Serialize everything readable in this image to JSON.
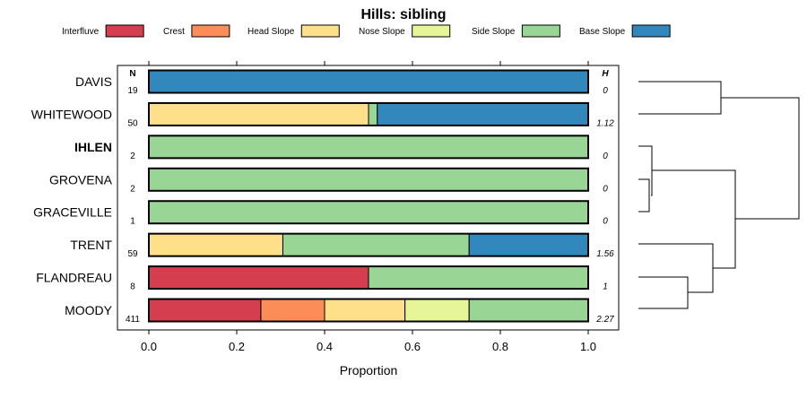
{
  "chart_data": {
    "type": "bar",
    "orientation": "horizontal",
    "stacked": true,
    "title": "Hills: sibling",
    "xlabel": "Proportion",
    "ylabel": "",
    "xlim": [
      0,
      1
    ],
    "x_ticks": [
      "0.0",
      "0.2",
      "0.4",
      "0.6",
      "0.8",
      "1.0"
    ],
    "n_header": "N",
    "h_header": "H",
    "legend": [
      {
        "name": "Interfluve",
        "color": "#D53E4F"
      },
      {
        "name": "Crest",
        "color": "#FC8D59"
      },
      {
        "name": "Head Slope",
        "color": "#FEE08B"
      },
      {
        "name": "Nose Slope",
        "color": "#E6F598"
      },
      {
        "name": "Side Slope",
        "color": "#99D594"
      },
      {
        "name": "Base Slope",
        "color": "#3288BD"
      }
    ],
    "categories": [
      "DAVIS",
      "WHITEWOOD",
      "IHLEN",
      "GROVENA",
      "GRACEVILLE",
      "TRENT",
      "FLANDREAU",
      "MOODY"
    ],
    "bold_category": "IHLEN",
    "n": [
      "19",
      "50",
      "2",
      "2",
      "1",
      "59",
      "8",
      "411"
    ],
    "h": [
      "0",
      "1.12",
      "0",
      "0",
      "0",
      "1.56",
      "1",
      "2.27"
    ],
    "series": [
      {
        "name": "Interfluve",
        "values": [
          0,
          0,
          0,
          0,
          0,
          0,
          0.5,
          0.255
        ]
      },
      {
        "name": "Crest",
        "values": [
          0,
          0,
          0,
          0,
          0,
          0,
          0,
          0.145
        ]
      },
      {
        "name": "Head Slope",
        "values": [
          0,
          0.5,
          0,
          0,
          0,
          0.305,
          0,
          0.183
        ]
      },
      {
        "name": "Nose Slope",
        "values": [
          0,
          0,
          0,
          0,
          0,
          0,
          0,
          0.146
        ]
      },
      {
        "name": "Side Slope",
        "values": [
          0,
          0.02,
          1,
          1,
          1,
          0.424,
          0.5,
          0.271
        ]
      },
      {
        "name": "Base Slope",
        "values": [
          1,
          0.48,
          0,
          0,
          0,
          0.271,
          0,
          0
        ]
      }
    ]
  }
}
